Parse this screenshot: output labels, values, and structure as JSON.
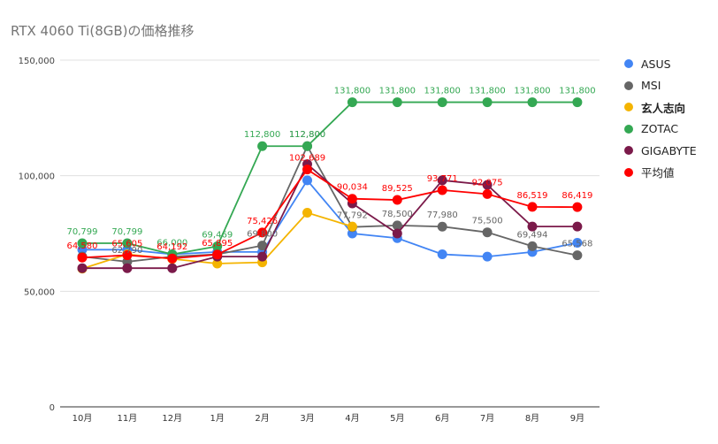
{
  "chart_data": {
    "type": "line",
    "title": "RTX 4060 Ti(8GB)の価格推移",
    "xlabel": "",
    "ylabel": "",
    "categories": [
      "10月",
      "11月",
      "12月",
      "1月",
      "2月",
      "3月",
      "4月",
      "5月",
      "6月",
      "7月",
      "8月",
      "9月"
    ],
    "ylim": [
      0,
      150000
    ],
    "yticks": [
      "0",
      "50,000",
      "100,000",
      "150,000"
    ],
    "grid": "horizontal",
    "legend_position": "right",
    "series": [
      {
        "name": "ASUS",
        "color": "#4285f4",
        "values": [
          68000,
          68000,
          66000,
          67000,
          67000,
          98000,
          75000,
          73000,
          66000,
          65000,
          67000,
          71000
        ],
        "labels": []
      },
      {
        "name": "MSI",
        "color": "#666666",
        "values": [
          65000,
          62790,
          65000,
          66000,
          69800,
          112800,
          77792,
          78500,
          77980,
          75500,
          69494,
          65568
        ],
        "labels": [
          "",
          "62,790",
          "",
          "",
          "69,800",
          "112,800",
          "77,792",
          "78,500",
          "77,980",
          "75,500",
          "69,494",
          "65,568"
        ]
      },
      {
        "name": "玄人志向",
        "color": "#f4b400",
        "values": [
          59800,
          66000,
          64000,
          62000,
          62500,
          84000,
          78000,
          null,
          null,
          null,
          null,
          null
        ],
        "labels": []
      },
      {
        "name": "ZOTAC",
        "color": "#34a853",
        "values": [
          70799,
          70799,
          66000,
          69469,
          112800,
          112800,
          131800,
          131800,
          131800,
          131800,
          131800,
          131800
        ],
        "labels": [
          "70,799",
          "70,799",
          "66,000",
          "69,469",
          "112,800",
          "112,800",
          "131,800",
          "131,800",
          "131,800",
          "131,800",
          "131,800",
          "131,800"
        ]
      },
      {
        "name": "GIGABYTE",
        "color": "#7b1a4a",
        "values": [
          60000,
          60000,
          60000,
          65000,
          65000,
          105000,
          88000,
          75000,
          98000,
          96000,
          78000,
          78000
        ],
        "labels": []
      },
      {
        "name": "平均値",
        "color": "#ff0000",
        "values": [
          64580,
          65605,
          64192,
          65895,
          75426,
          102689,
          90034,
          89525,
          93771,
          92075,
          86519,
          86419
        ],
        "labels": [
          "64,580",
          "65,605",
          "64,192",
          "65,895",
          "75,426",
          "102,689",
          "90,034",
          "89,525",
          "93,771",
          "92,075",
          "86,519",
          "86,419"
        ]
      }
    ]
  }
}
